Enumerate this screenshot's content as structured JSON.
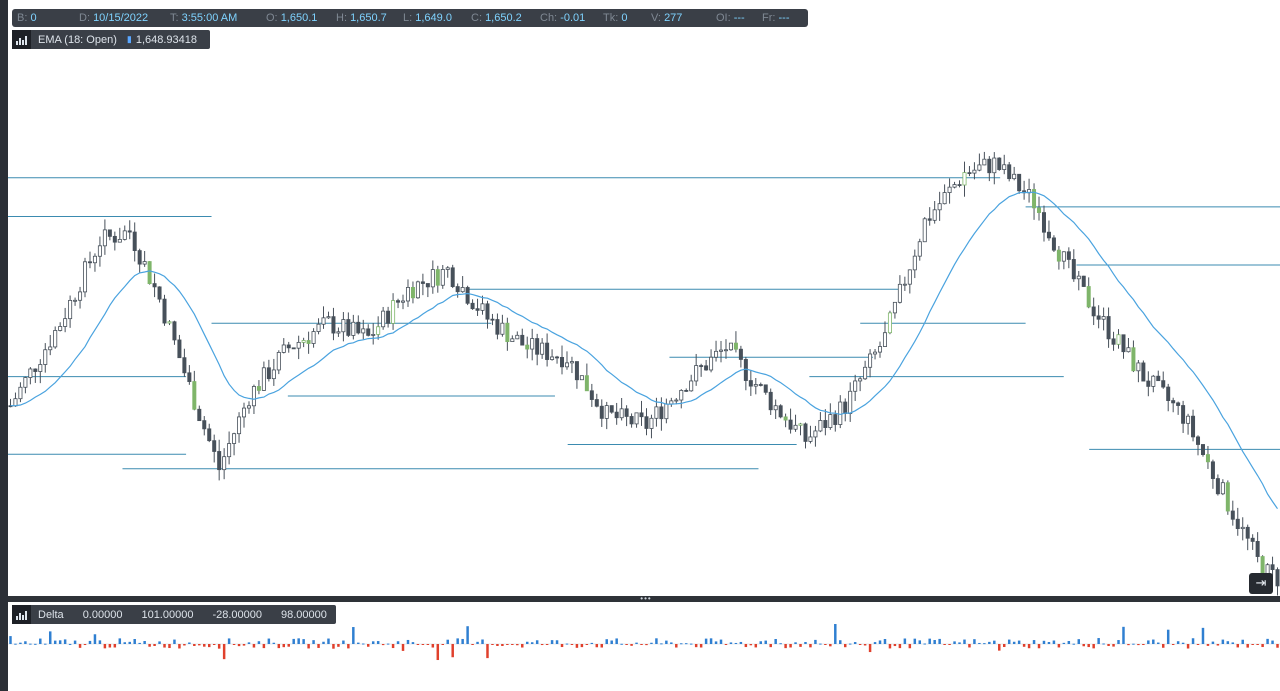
{
  "info_bar": {
    "bar_label": "B:",
    "bar_value": "0",
    "date_label": "D:",
    "date_value": "10/15/2022",
    "time_label": "T:",
    "time_value": "3:55:00 AM",
    "open_label": "O:",
    "open_value": "1,650.1",
    "high_label": "H:",
    "high_value": "1,650.7",
    "low_label": "L:",
    "low_value": "1,649.0",
    "close_label": "C:",
    "close_value": "1,650.2",
    "change_label": "Ch:",
    "change_value": "-0.01",
    "ticks_label": "Tk:",
    "ticks_value": "0",
    "volume_label": "V:",
    "volume_value": "277",
    "oi_label": "OI:",
    "oi_value": "---",
    "fr_label": "Fr:",
    "fr_value": "---"
  },
  "ema_legend": {
    "label": "EMA (18: Open)",
    "value": "1,648.93418",
    "color": "#4aa3df"
  },
  "delta_legend": {
    "label": "Delta",
    "v1": "0.00000",
    "v2": "101.00000",
    "v3": "-28.00000",
    "v4": "98.00000"
  },
  "colors": {
    "candle_body": "#47505a",
    "candle_high_volume": "#7fb56a",
    "ema_line": "#4aa3df",
    "level_line": "#3b8bb0",
    "delta_positive": "#2f7fd1",
    "delta_negative": "#e0402c"
  },
  "controls": {
    "scroll_to_end_icon": "arrow-right-bar-icon",
    "indicator_icon": "bar-chart-icon"
  },
  "chart_data": [
    {
      "type": "candlestick",
      "title": "",
      "xlabel": "",
      "ylabel": "",
      "note_series": "EMA (18: Open)",
      "grid": false,
      "trend_profile": [
        [
          0,
          0.38
        ],
        [
          10,
          0.55
        ],
        [
          18,
          0.72
        ],
        [
          24,
          0.74
        ],
        [
          30,
          0.6
        ],
        [
          36,
          0.42
        ],
        [
          42,
          0.25
        ],
        [
          48,
          0.4
        ],
        [
          56,
          0.5
        ],
        [
          64,
          0.55
        ],
        [
          72,
          0.52
        ],
        [
          80,
          0.62
        ],
        [
          88,
          0.66
        ],
        [
          96,
          0.56
        ],
        [
          104,
          0.5
        ],
        [
          112,
          0.48
        ],
        [
          120,
          0.36
        ],
        [
          128,
          0.34
        ],
        [
          136,
          0.43
        ],
        [
          144,
          0.5
        ],
        [
          152,
          0.4
        ],
        [
          160,
          0.31
        ],
        [
          168,
          0.38
        ],
        [
          176,
          0.52
        ],
        [
          184,
          0.76
        ],
        [
          192,
          0.86
        ],
        [
          198,
          0.88
        ],
        [
          206,
          0.8
        ],
        [
          214,
          0.64
        ],
        [
          220,
          0.55
        ],
        [
          228,
          0.44
        ],
        [
          236,
          0.36
        ],
        [
          244,
          0.2
        ],
        [
          252,
          0.04
        ],
        [
          256,
          0.02
        ]
      ],
      "candle_count": 256,
      "levels": [
        {
          "x0": 0.0,
          "x1": 0.78,
          "y": 0.85
        },
        {
          "x0": 0.0,
          "x1": 0.16,
          "y": 0.77
        },
        {
          "x0": 0.8,
          "x1": 1.0,
          "y": 0.79
        },
        {
          "x0": 0.36,
          "x1": 0.7,
          "y": 0.62
        },
        {
          "x0": 0.84,
          "x1": 1.0,
          "y": 0.67
        },
        {
          "x0": 0.16,
          "x1": 0.38,
          "y": 0.55
        },
        {
          "x0": 0.67,
          "x1": 0.8,
          "y": 0.55
        },
        {
          "x0": 0.0,
          "x1": 0.14,
          "y": 0.44
        },
        {
          "x0": 0.22,
          "x1": 0.43,
          "y": 0.4
        },
        {
          "x0": 0.63,
          "x1": 0.83,
          "y": 0.44
        },
        {
          "x0": 0.52,
          "x1": 0.68,
          "y": 0.48
        },
        {
          "x0": 0.85,
          "x1": 1.0,
          "y": 0.29
        },
        {
          "x0": 0.0,
          "x1": 0.14,
          "y": 0.28
        },
        {
          "x0": 0.44,
          "x1": 0.62,
          "y": 0.3
        },
        {
          "x0": 0.09,
          "x1": 0.59,
          "y": 0.25
        }
      ]
    },
    {
      "type": "bar",
      "title": "",
      "note_series": "Delta",
      "bar_count": 256,
      "value_range": [
        -1,
        1
      ]
    }
  ]
}
